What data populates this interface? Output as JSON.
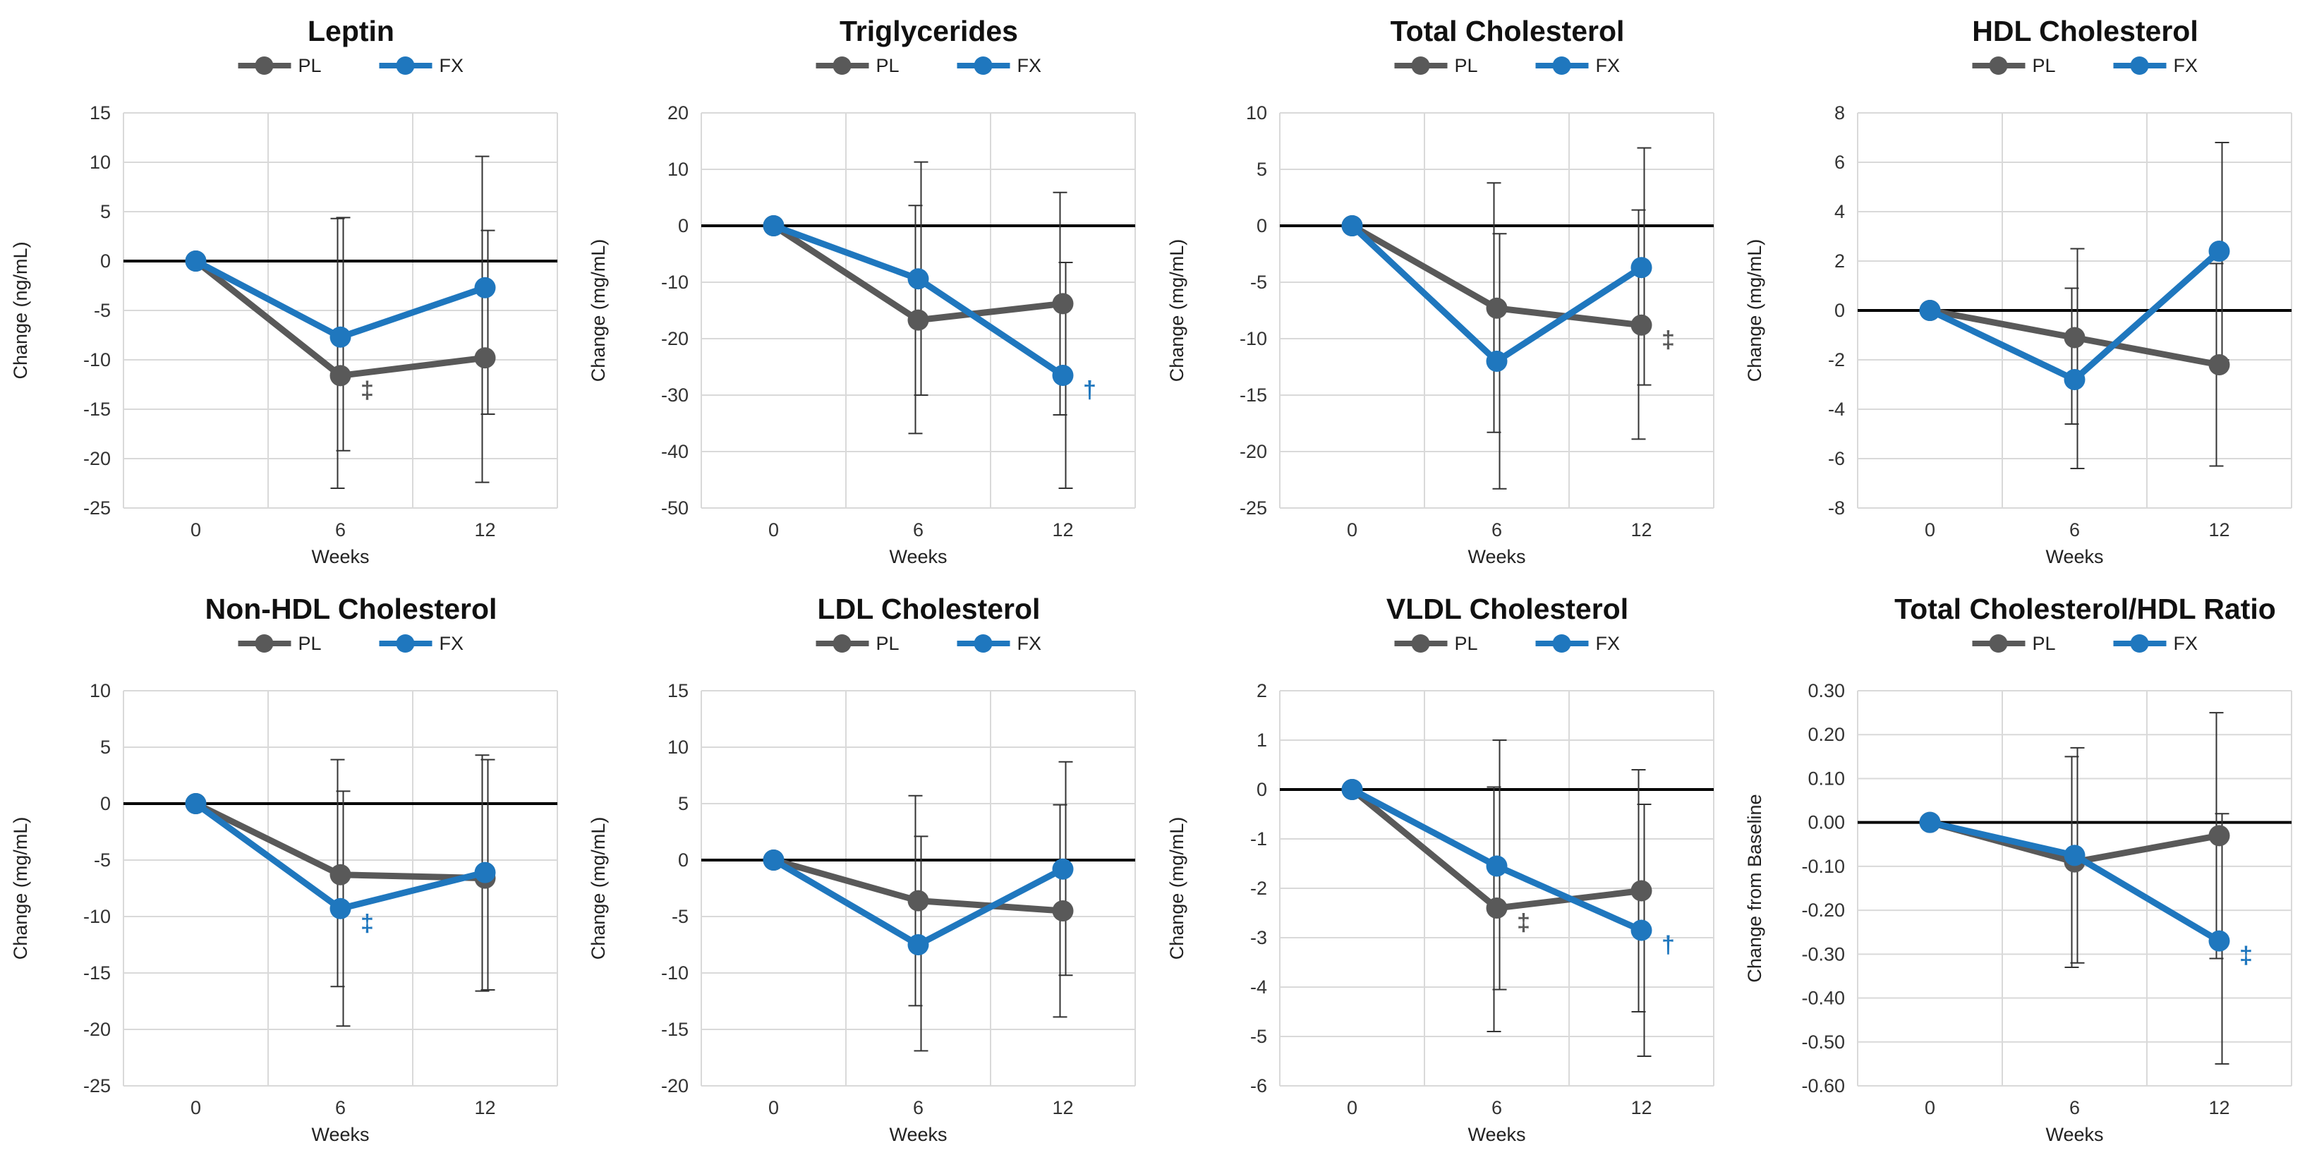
{
  "colors": {
    "PL": "#595959",
    "FX": "#1F77BE",
    "grid": "#d9d9d9",
    "zero": "#000000",
    "errorbar": "#333333"
  },
  "chart_data": [
    {
      "type": "line",
      "title": "Leptin",
      "xlabel": "Weeks",
      "ylabel": "Change (ng/mL)",
      "categories": [
        "0",
        "6",
        "12"
      ],
      "ylim": [
        -25,
        15
      ],
      "yticks": [
        "15",
        "10",
        "5",
        "0",
        "-5",
        "-10",
        "-15",
        "-20",
        "-25"
      ],
      "legend": [
        "PL",
        "FX"
      ],
      "series": [
        {
          "name": "PL",
          "values": [
            0,
            -11.6,
            -9.8
          ],
          "err_upper": [
            0,
            4.3,
            10.6
          ],
          "err_lower": [
            0,
            -23,
            -22.4
          ]
        },
        {
          "name": "FX",
          "values": [
            0,
            -7.7,
            -2.7
          ],
          "err_upper": [
            0,
            4.4,
            3.1
          ],
          "err_lower": [
            0,
            -19.2,
            -15.5
          ]
        }
      ],
      "annotations": [
        {
          "text": "‡",
          "series": "PL",
          "index": 1
        }
      ]
    },
    {
      "type": "line",
      "title": "Triglycerides",
      "xlabel": "Weeks",
      "ylabel": "Change (mg/mL)",
      "categories": [
        "0",
        "6",
        "12"
      ],
      "ylim": [
        -50,
        20
      ],
      "yticks": [
        "20",
        "10",
        "0",
        "-10",
        "-20",
        "-30",
        "-40",
        "-50"
      ],
      "legend": [
        "PL",
        "FX"
      ],
      "series": [
        {
          "name": "PL",
          "values": [
            0,
            -16.7,
            -13.8
          ],
          "err_upper": [
            0,
            3.6,
            5.9
          ],
          "err_lower": [
            0,
            -36.8,
            -33.5
          ]
        },
        {
          "name": "FX",
          "values": [
            0,
            -9.4,
            -26.5
          ],
          "err_upper": [
            0,
            11.3,
            -6.5
          ],
          "err_lower": [
            0,
            -30,
            -46.5
          ]
        }
      ],
      "annotations": [
        {
          "text": "†",
          "series": "FX",
          "index": 2
        }
      ]
    },
    {
      "type": "line",
      "title": "Total Cholesterol",
      "xlabel": "Weeks",
      "ylabel": "Change (mg/mL)",
      "categories": [
        "0",
        "6",
        "12"
      ],
      "ylim": [
        -25,
        10
      ],
      "yticks": [
        "10",
        "5",
        "0",
        "-5",
        "-10",
        "-15",
        "-20",
        "-25"
      ],
      "legend": [
        "PL",
        "FX"
      ],
      "series": [
        {
          "name": "PL",
          "values": [
            0,
            -7.3,
            -8.8
          ],
          "err_upper": [
            0,
            3.8,
            1.4
          ],
          "err_lower": [
            0,
            -18.3,
            -18.9
          ]
        },
        {
          "name": "FX",
          "values": [
            0,
            -12,
            -3.7
          ],
          "err_upper": [
            0,
            -0.7,
            6.9
          ],
          "err_lower": [
            0,
            -23.3,
            -14.1
          ]
        }
      ],
      "annotations": [
        {
          "text": "‡",
          "series": "PL",
          "index": 2
        }
      ]
    },
    {
      "type": "line",
      "title": "HDL Cholesterol",
      "xlabel": "Weeks",
      "ylabel": "Change (mg/mL)",
      "categories": [
        "0",
        "6",
        "12"
      ],
      "ylim": [
        -8,
        8
      ],
      "yticks": [
        "8",
        "6",
        "4",
        "2",
        "0",
        "-2",
        "-4",
        "-6",
        "-8"
      ],
      "legend": [
        "PL",
        "FX"
      ],
      "series": [
        {
          "name": "PL",
          "values": [
            0,
            -1.1,
            -2.2
          ],
          "err_upper": [
            0,
            0.9,
            1.9
          ],
          "err_lower": [
            0,
            -4.6,
            -6.3
          ]
        },
        {
          "name": "FX",
          "values": [
            0,
            -2.8,
            2.4
          ],
          "err_upper": [
            0,
            2.5,
            6.8
          ],
          "err_lower": [
            0,
            -6.4,
            -2
          ]
        }
      ],
      "annotations": []
    },
    {
      "type": "line",
      "title": "Non-HDL Cholesterol",
      "xlabel": "Weeks",
      "ylabel": "Change (mg/mL)",
      "categories": [
        "0",
        "6",
        "12"
      ],
      "ylim": [
        -25,
        10
      ],
      "yticks": [
        "10",
        "5",
        "0",
        "-5",
        "-10",
        "-15",
        "-20",
        "-25"
      ],
      "legend": [
        "PL",
        "FX"
      ],
      "series": [
        {
          "name": "PL",
          "values": [
            0,
            -6.3,
            -6.6
          ],
          "err_upper": [
            0,
            3.9,
            4.3
          ],
          "err_lower": [
            0,
            -16.2,
            -16.6
          ]
        },
        {
          "name": "FX",
          "values": [
            0,
            -9.3,
            -6.1
          ],
          "err_upper": [
            0,
            1.1,
            3.9
          ],
          "err_lower": [
            0,
            -19.7,
            -16.5
          ]
        }
      ],
      "annotations": [
        {
          "text": "‡",
          "series": "FX",
          "index": 1
        }
      ]
    },
    {
      "type": "line",
      "title": "LDL Cholesterol",
      "xlabel": "Weeks",
      "ylabel": "Change (mg/mL)",
      "categories": [
        "0",
        "6",
        "12"
      ],
      "ylim": [
        -20,
        15
      ],
      "yticks": [
        "15",
        "10",
        "5",
        "0",
        "-5",
        "-10",
        "-15",
        "-20"
      ],
      "legend": [
        "PL",
        "FX"
      ],
      "series": [
        {
          "name": "PL",
          "values": [
            0,
            -3.6,
            -4.5
          ],
          "err_upper": [
            0,
            5.7,
            4.9
          ],
          "err_lower": [
            0,
            -12.9,
            -13.9
          ]
        },
        {
          "name": "FX",
          "values": [
            0,
            -7.5,
            -0.8
          ],
          "err_upper": [
            0,
            2.1,
            8.7
          ],
          "err_lower": [
            0,
            -16.9,
            -10.2
          ]
        }
      ],
      "annotations": []
    },
    {
      "type": "line",
      "title": "VLDL Cholesterol",
      "xlabel": "Weeks",
      "ylabel": "Change (mg/mL)",
      "categories": [
        "0",
        "6",
        "12"
      ],
      "ylim": [
        -6,
        2
      ],
      "yticks": [
        "2",
        "1",
        "0",
        "-1",
        "-2",
        "-3",
        "-4",
        "-5",
        "-6"
      ],
      "legend": [
        "PL",
        "FX"
      ],
      "series": [
        {
          "name": "PL",
          "values": [
            0,
            -2.4,
            -2.05
          ],
          "err_upper": [
            0,
            0.05,
            0.4
          ],
          "err_lower": [
            0,
            -4.9,
            -4.5
          ]
        },
        {
          "name": "FX",
          "values": [
            0,
            -1.55,
            -2.85
          ],
          "err_upper": [
            0,
            1.0,
            -0.3
          ],
          "err_lower": [
            0,
            -4.05,
            -5.4
          ]
        }
      ],
      "annotations": [
        {
          "text": "‡",
          "series": "PL",
          "index": 1
        },
        {
          "text": "†",
          "series": "FX",
          "index": 2
        }
      ]
    },
    {
      "type": "line",
      "title": "Total Cholesterol/HDL Ratio",
      "xlabel": "Weeks",
      "ylabel": "Change from Baseline",
      "categories": [
        "0",
        "6",
        "12"
      ],
      "ylim": [
        -0.6,
        0.3
      ],
      "yticks": [
        "0.30",
        "0.20",
        "0.10",
        "0.00",
        "-0.10",
        "-0.20",
        "-0.30",
        "-0.40",
        "-0.50",
        "-0.60"
      ],
      "legend": [
        "PL",
        "FX"
      ],
      "series": [
        {
          "name": "PL",
          "values": [
            0,
            -0.09,
            -0.03
          ],
          "err_upper": [
            0,
            0.15,
            0.25
          ],
          "err_lower": [
            0,
            -0.33,
            -0.31
          ]
        },
        {
          "name": "FX",
          "values": [
            0,
            -0.075,
            -0.27
          ],
          "err_upper": [
            0,
            0.17,
            0.02
          ],
          "err_lower": [
            0,
            -0.32,
            -0.55
          ]
        }
      ],
      "annotations": [
        {
          "text": "‡",
          "series": "FX",
          "index": 2
        }
      ]
    }
  ]
}
